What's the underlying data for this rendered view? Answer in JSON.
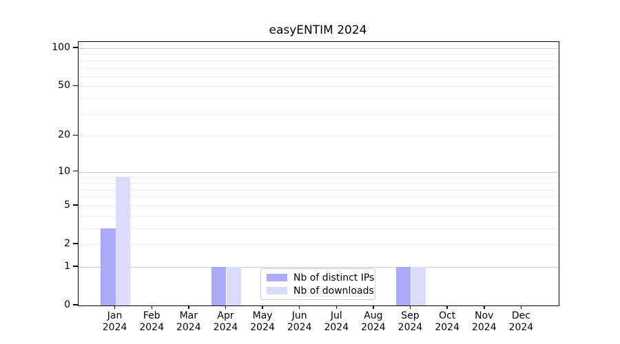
{
  "chart_data": {
    "type": "bar",
    "title": "easyENTIM 2024",
    "x_categories": [
      "Jan",
      "Feb",
      "Mar",
      "Apr",
      "May",
      "Jun",
      "Jul",
      "Aug",
      "Sep",
      "Oct",
      "Nov",
      "Dec"
    ],
    "x_year_label": "2024",
    "series": [
      {
        "name": "Nb of distinct IPs",
        "color": "#aaaaf8",
        "values": [
          3,
          0,
          0,
          1,
          0,
          0,
          0,
          0,
          1,
          0,
          0,
          0
        ]
      },
      {
        "name": "Nb of downloads",
        "color": "#dbdbfb",
        "values": [
          9,
          0,
          0,
          1,
          0,
          0,
          0,
          0,
          1,
          0,
          0,
          0
        ]
      }
    ],
    "y_scale": "log1p",
    "ylim": [
      0,
      100
    ],
    "y_ticks": [
      0,
      1,
      2,
      5,
      10,
      20,
      50,
      100
    ],
    "y_major_gridlines": [
      1,
      10,
      100
    ],
    "y_minor_gridlines": [
      2,
      3,
      4,
      5,
      6,
      7,
      8,
      9,
      20,
      30,
      40,
      50,
      60,
      70,
      80,
      90
    ],
    "grid_color_major": "#c8c8c8",
    "grid_color_minor": "#ededed",
    "axis_color": "#000000",
    "legend_position": "lower center inside"
  }
}
